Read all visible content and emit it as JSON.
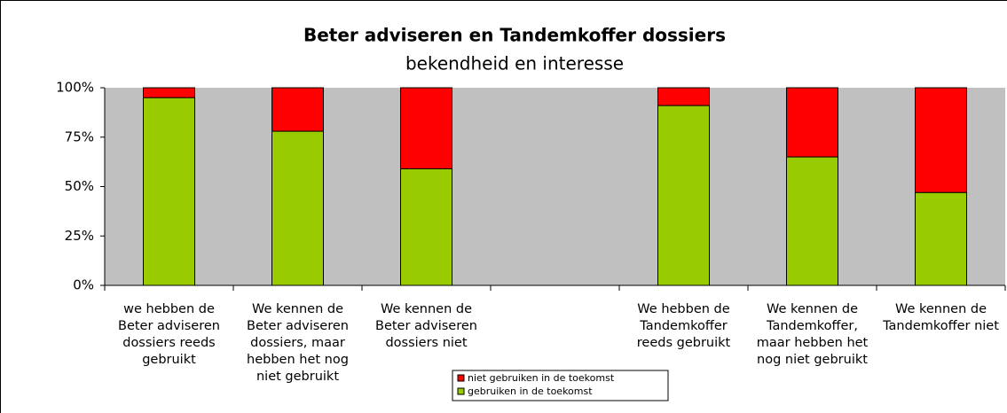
{
  "chart_data": {
    "type": "stacked_bar_percent",
    "title": "Beter adviseren en Tandemkoffer dossiers",
    "subtitle": "bekendheid en interesse",
    "categories": [
      "we hebben de Beter adviseren dossiers reeds gebruikt",
      "We kennen de Beter adviseren dossiers, maar hebben het nog niet gebruikt",
      "We kennen de Beter adviseren dossiers niet",
      null,
      "We hebben de Tandemkoffer reeds gebruikt",
      "We kennen de Tandemkoffer, maar hebben het nog niet gebruikt",
      "We kennen de Tandemkoffer niet"
    ],
    "series": [
      {
        "name": "gebruiken in de toekomst",
        "color": "#99cc00",
        "values": [
          95,
          78,
          59,
          null,
          91,
          65,
          47
        ]
      },
      {
        "name": "niet gebruiken in de toekomst",
        "color": "#ff0000",
        "values": [
          5,
          22,
          41,
          null,
          9,
          35,
          53
        ]
      }
    ],
    "ylim": [
      0,
      100
    ],
    "yticks": [
      {
        "value": 0,
        "label": "0%"
      },
      {
        "value": 25,
        "label": "25%"
      },
      {
        "value": 50,
        "label": "50%"
      },
      {
        "value": 75,
        "label": "75%"
      },
      {
        "value": 100,
        "label": "100%"
      }
    ],
    "plot_background": "#c0c0c0",
    "legend": "bottom"
  }
}
